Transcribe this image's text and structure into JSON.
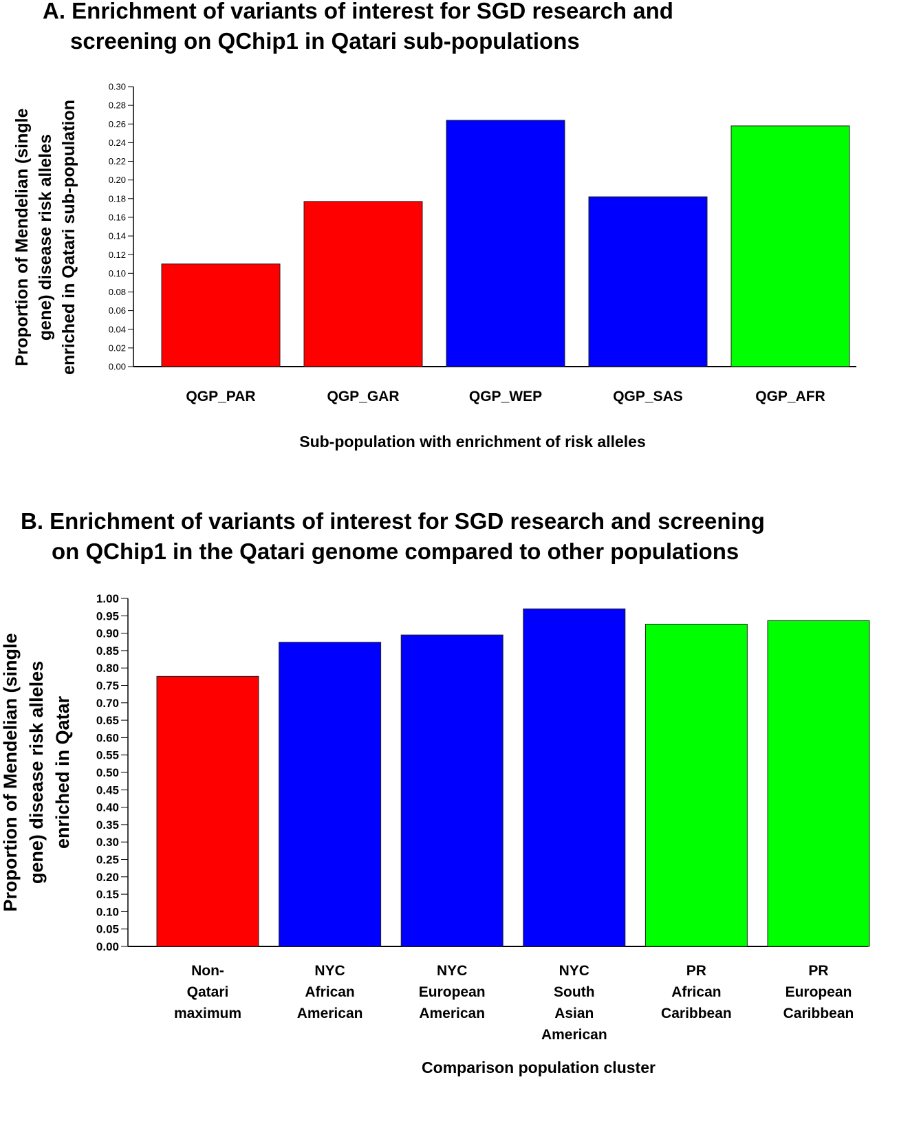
{
  "chart_data": [
    {
      "type": "bar",
      "title_line1": "A. Enrichment of variants of interest for SGD research and",
      "title_line2": "screening on QChip1 in Qatari sub-populations",
      "categories": [
        "QGP_PAR",
        "QGP_GAR",
        "QGP_WEP",
        "QGP_SAS",
        "QGP_AFR"
      ],
      "values": [
        0.11,
        0.177,
        0.264,
        0.182,
        0.258
      ],
      "colors": [
        "#ff0000",
        "#ff0000",
        "#0000ff",
        "#0000ff",
        "#00ff00"
      ],
      "xlabel": "Sub-population with enrichment of risk alleles",
      "ylabel_lines": [
        "Proportion of Mendelian (single",
        "gene) disease risk alleles",
        "enriched in Qatari sub-population"
      ],
      "ylim": [
        0,
        0.3
      ],
      "yticks": [
        "0.00",
        "0.02",
        "0.04",
        "0.06",
        "0.08",
        "0.10",
        "0.12",
        "0.14",
        "0.16",
        "0.18",
        "0.20",
        "0.22",
        "0.24",
        "0.26",
        "0.28",
        "0.30"
      ]
    },
    {
      "type": "bar",
      "title_line1": "B. Enrichment of variants of interest for SGD research and screening",
      "title_line2": "on QChip1 in the Qatari genome compared to other populations",
      "categories": [
        [
          "Non-",
          "Qatari",
          "maximum"
        ],
        [
          "NYC",
          "African",
          "American"
        ],
        [
          "NYC",
          "European",
          "American"
        ],
        [
          "NYC",
          "South",
          "Asian",
          "American"
        ],
        [
          "PR",
          "African",
          "Caribbean"
        ],
        [
          "PR",
          "European",
          "Caribbean"
        ]
      ],
      "values": [
        0.776,
        0.874,
        0.895,
        0.97,
        0.926,
        0.936
      ],
      "colors": [
        "#ff0000",
        "#0000ff",
        "#0000ff",
        "#0000ff",
        "#00ff00",
        "#00ff00"
      ],
      "xlabel": "Comparison population cluster",
      "ylabel_lines": [
        "Proportion of Mendelian (single",
        "gene) disease risk alleles",
        "enriched in Qatar"
      ],
      "ylim": [
        0,
        1.0
      ],
      "yticks": [
        "0.00",
        "0.05",
        "0.10",
        "0.15",
        "0.20",
        "0.25",
        "0.30",
        "0.35",
        "0.40",
        "0.45",
        "0.50",
        "0.55",
        "0.60",
        "0.65",
        "0.70",
        "0.75",
        "0.80",
        "0.85",
        "0.90",
        "0.95",
        "1.00"
      ]
    }
  ]
}
